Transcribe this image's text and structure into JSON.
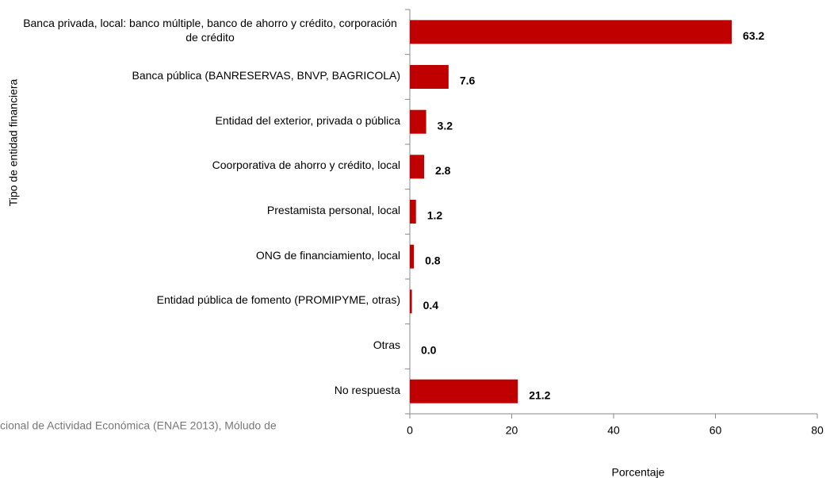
{
  "chart_data": {
    "type": "bar",
    "orientation": "horizontal",
    "categories": [
      "Banca privada, local: banco múltiple, banco de ahorro y crédito, corporación de crédito",
      "Banca pública (BANRESERVAS, BNVP, BAGRICOLA)",
      "Entidad del exterior, privada o pública",
      "Coorporativa de ahorro y crédito, local",
      "Prestamista personal, local",
      "ONG de financiamiento, local",
      "Entidad pública de fomento (PROMIPYME, otras)",
      "Otras",
      "No respuesta"
    ],
    "values": [
      63.2,
      7.6,
      3.2,
      2.8,
      1.2,
      0.8,
      0.4,
      0.0,
      21.2
    ],
    "value_labels": [
      "63.2",
      "7.6",
      "3.2",
      "2.8",
      "1.2",
      "0.8",
      "0.4",
      "0.0",
      "21.2"
    ],
    "color": "#c00000",
    "xlim": [
      0,
      80
    ],
    "xticks": [
      0,
      20,
      40,
      60,
      80
    ],
    "x_label": "Porcentaje",
    "y_label": "Tipo de entidad financiera",
    "source": "cional de Actividad Económica (ENAE 2013), Móludo de"
  }
}
